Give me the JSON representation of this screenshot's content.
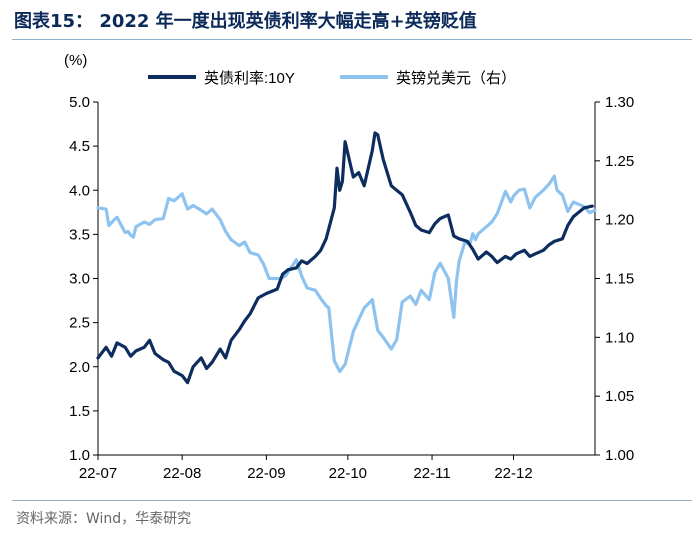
{
  "header": {
    "title": "图表15：  2022 年一度出现英债利率大幅走高+英镑贬值"
  },
  "footer": {
    "source": "资料来源：Wind，华泰研究"
  },
  "colors": {
    "title": "#0b2a5a",
    "series_gilt": "#0d2d5e",
    "series_gbp": "#8ec3ef",
    "rule": "#8fb0cf"
  },
  "chart_data": {
    "type": "line",
    "unit_label": "(%)",
    "x_ticks": [
      "22-07",
      "22-08",
      "22-09",
      "22-10",
      "22-11",
      "22-12"
    ],
    "x_range": [
      "2022-07-01",
      "2022-12-31"
    ],
    "ylim_left": [
      1.0,
      5.0
    ],
    "y_ticks_left": [
      "1.0",
      "1.5",
      "2.0",
      "2.5",
      "3.0",
      "3.5",
      "4.0",
      "4.5",
      "5.0"
    ],
    "ylim_right": [
      1.0,
      1.3
    ],
    "y_ticks_right": [
      "1.00",
      "1.05",
      "1.10",
      "1.15",
      "1.20",
      "1.25",
      "1.30"
    ],
    "grid": false,
    "legend_placement": "top",
    "series": [
      {
        "name": "英债利率:10Y",
        "axis": "left",
        "points": [
          [
            "2022-07-01",
            2.1
          ],
          [
            "2022-07-04",
            2.22
          ],
          [
            "2022-07-06",
            2.12
          ],
          [
            "2022-07-08",
            2.27
          ],
          [
            "2022-07-11",
            2.22
          ],
          [
            "2022-07-13",
            2.12
          ],
          [
            "2022-07-15",
            2.18
          ],
          [
            "2022-07-18",
            2.22
          ],
          [
            "2022-07-20",
            2.3
          ],
          [
            "2022-07-22",
            2.15
          ],
          [
            "2022-07-25",
            2.08
          ],
          [
            "2022-07-27",
            2.05
          ],
          [
            "2022-07-29",
            1.95
          ],
          [
            "2022-08-01",
            1.9
          ],
          [
            "2022-08-03",
            1.82
          ],
          [
            "2022-08-05",
            2.0
          ],
          [
            "2022-08-08",
            2.1
          ],
          [
            "2022-08-10",
            1.98
          ],
          [
            "2022-08-12",
            2.05
          ],
          [
            "2022-08-15",
            2.2
          ],
          [
            "2022-08-17",
            2.1
          ],
          [
            "2022-08-19",
            2.3
          ],
          [
            "2022-08-22",
            2.42
          ],
          [
            "2022-08-24",
            2.52
          ],
          [
            "2022-08-26",
            2.6
          ],
          [
            "2022-08-29",
            2.78
          ],
          [
            "2022-09-01",
            2.83
          ],
          [
            "2022-09-05",
            2.88
          ],
          [
            "2022-09-07",
            3.05
          ],
          [
            "2022-09-09",
            3.1
          ],
          [
            "2022-09-12",
            3.12
          ],
          [
            "2022-09-14",
            3.2
          ],
          [
            "2022-09-16",
            3.17
          ],
          [
            "2022-09-19",
            3.25
          ],
          [
            "2022-09-21",
            3.32
          ],
          [
            "2022-09-23",
            3.45
          ],
          [
            "2022-09-26",
            3.8
          ],
          [
            "2022-09-27",
            4.25
          ],
          [
            "2022-09-28",
            4.0
          ],
          [
            "2022-09-29",
            4.1
          ],
          [
            "2022-09-30",
            4.55
          ],
          [
            "2022-10-03",
            4.15
          ],
          [
            "2022-10-05",
            4.2
          ],
          [
            "2022-10-07",
            4.05
          ],
          [
            "2022-10-10",
            4.45
          ],
          [
            "2022-10-11",
            4.65
          ],
          [
            "2022-10-12",
            4.63
          ],
          [
            "2022-10-14",
            4.35
          ],
          [
            "2022-10-17",
            4.05
          ],
          [
            "2022-10-19",
            4.0
          ],
          [
            "2022-10-21",
            3.95
          ],
          [
            "2022-10-24",
            3.75
          ],
          [
            "2022-10-26",
            3.6
          ],
          [
            "2022-10-28",
            3.55
          ],
          [
            "2022-10-31",
            3.52
          ],
          [
            "2022-11-02",
            3.62
          ],
          [
            "2022-11-04",
            3.68
          ],
          [
            "2022-11-07",
            3.72
          ],
          [
            "2022-11-09",
            3.48
          ],
          [
            "2022-11-11",
            3.45
          ],
          [
            "2022-11-14",
            3.42
          ],
          [
            "2022-11-16",
            3.33
          ],
          [
            "2022-11-18",
            3.22
          ],
          [
            "2022-11-21",
            3.3
          ],
          [
            "2022-11-23",
            3.25
          ],
          [
            "2022-11-25",
            3.18
          ],
          [
            "2022-11-28",
            3.25
          ],
          [
            "2022-11-30",
            3.22
          ],
          [
            "2022-12-02",
            3.28
          ],
          [
            "2022-12-05",
            3.32
          ],
          [
            "2022-12-07",
            3.25
          ],
          [
            "2022-12-09",
            3.28
          ],
          [
            "2022-12-12",
            3.32
          ],
          [
            "2022-12-14",
            3.38
          ],
          [
            "2022-12-16",
            3.42
          ],
          [
            "2022-12-19",
            3.45
          ],
          [
            "2022-12-21",
            3.6
          ],
          [
            "2022-12-23",
            3.7
          ],
          [
            "2022-12-27",
            3.8
          ],
          [
            "2022-12-30",
            3.82
          ]
        ]
      },
      {
        "name": "英镑兑美元（右）",
        "axis": "right",
        "points": [
          [
            "2022-07-01",
            1.21
          ],
          [
            "2022-07-04",
            1.209
          ],
          [
            "2022-07-05",
            1.195
          ],
          [
            "2022-07-07",
            1.2
          ],
          [
            "2022-07-08",
            1.202
          ],
          [
            "2022-07-11",
            1.189
          ],
          [
            "2022-07-12",
            1.19
          ],
          [
            "2022-07-13",
            1.187
          ],
          [
            "2022-07-14",
            1.185
          ],
          [
            "2022-07-15",
            1.194
          ],
          [
            "2022-07-18",
            1.198
          ],
          [
            "2022-07-20",
            1.196
          ],
          [
            "2022-07-22",
            1.2
          ],
          [
            "2022-07-25",
            1.201
          ],
          [
            "2022-07-27",
            1.218
          ],
          [
            "2022-07-29",
            1.216
          ],
          [
            "2022-08-01",
            1.222
          ],
          [
            "2022-08-02",
            1.215
          ],
          [
            "2022-08-03",
            1.209
          ],
          [
            "2022-08-05",
            1.212
          ],
          [
            "2022-08-08",
            1.208
          ],
          [
            "2022-08-10",
            1.205
          ],
          [
            "2022-08-12",
            1.209
          ],
          [
            "2022-08-15",
            1.2
          ],
          [
            "2022-08-17",
            1.19
          ],
          [
            "2022-08-19",
            1.183
          ],
          [
            "2022-08-22",
            1.178
          ],
          [
            "2022-08-24",
            1.181
          ],
          [
            "2022-08-26",
            1.172
          ],
          [
            "2022-08-29",
            1.17
          ],
          [
            "2022-08-31",
            1.162
          ],
          [
            "2022-09-02",
            1.15
          ],
          [
            "2022-09-06",
            1.15
          ],
          [
            "2022-09-08",
            1.152
          ],
          [
            "2022-09-12",
            1.166
          ],
          [
            "2022-09-14",
            1.152
          ],
          [
            "2022-09-16",
            1.142
          ],
          [
            "2022-09-19",
            1.14
          ],
          [
            "2022-09-21",
            1.133
          ],
          [
            "2022-09-23",
            1.127
          ],
          [
            "2022-09-24",
            1.125
          ],
          [
            "2022-09-26",
            1.08
          ],
          [
            "2022-09-28",
            1.071
          ],
          [
            "2022-09-30",
            1.077
          ],
          [
            "2022-10-03",
            1.105
          ],
          [
            "2022-10-05",
            1.115
          ],
          [
            "2022-10-07",
            1.125
          ],
          [
            "2022-10-10",
            1.132
          ],
          [
            "2022-10-12",
            1.106
          ],
          [
            "2022-10-14",
            1.1
          ],
          [
            "2022-10-17",
            1.09
          ],
          [
            "2022-10-19",
            1.098
          ],
          [
            "2022-10-21",
            1.13
          ],
          [
            "2022-10-24",
            1.135
          ],
          [
            "2022-10-26",
            1.128
          ],
          [
            "2022-10-28",
            1.14
          ],
          [
            "2022-10-31",
            1.132
          ],
          [
            "2022-11-02",
            1.155
          ],
          [
            "2022-11-04",
            1.163
          ],
          [
            "2022-11-07",
            1.15
          ],
          [
            "2022-11-09",
            1.117
          ],
          [
            "2022-11-10",
            1.148
          ],
          [
            "2022-11-11",
            1.165
          ],
          [
            "2022-11-13",
            1.18
          ],
          [
            "2022-11-15",
            1.18
          ],
          [
            "2022-11-16",
            1.188
          ],
          [
            "2022-11-17",
            1.183
          ],
          [
            "2022-11-18",
            1.188
          ],
          [
            "2022-11-21",
            1.194
          ],
          [
            "2022-11-23",
            1.198
          ],
          [
            "2022-11-25",
            1.205
          ],
          [
            "2022-11-28",
            1.224
          ],
          [
            "2022-11-30",
            1.215
          ],
          [
            "2022-12-01",
            1.22
          ],
          [
            "2022-12-03",
            1.225
          ],
          [
            "2022-12-05",
            1.226
          ],
          [
            "2022-12-07",
            1.21
          ],
          [
            "2022-12-09",
            1.219
          ],
          [
            "2022-12-12",
            1.225
          ],
          [
            "2022-12-14",
            1.23
          ],
          [
            "2022-12-16",
            1.237
          ],
          [
            "2022-12-17",
            1.225
          ],
          [
            "2022-12-19",
            1.221
          ],
          [
            "2022-12-21",
            1.207
          ],
          [
            "2022-12-23",
            1.215
          ],
          [
            "2022-12-27",
            1.211
          ],
          [
            "2022-12-29",
            1.206
          ],
          [
            "2022-12-31",
            1.208
          ]
        ]
      }
    ]
  }
}
